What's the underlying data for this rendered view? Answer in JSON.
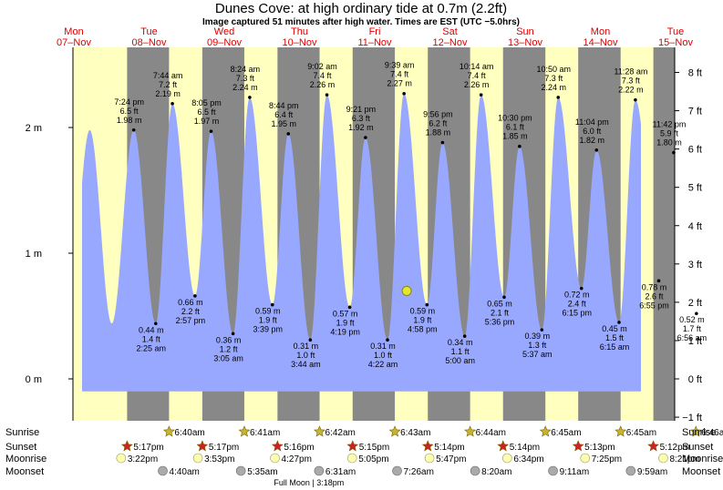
{
  "title": "Dunes Cove: at high  ordinary tide at 0.7m (2.2ft)",
  "subtitle": "Image captured 51 minutes after high water. Times are EST (UTC −5.0hrs)",
  "colors": {
    "day": "#ffffc0",
    "night": "#888888",
    "tide": "#99a8ff",
    "date_label": "#dd0000",
    "current_marker": "#e6e632",
    "sun_star": "#c8b432",
    "sunset_star": "#cc2222",
    "moonrise": "#fdfdb0",
    "moonset": "#aaaaaa"
  },
  "chart_data": {
    "type": "area",
    "title": "Dunes Cove: at high  ordinary tide at 0.7m (2.2ft)",
    "subtitle": "Image captured 51 minutes after high water. Times are EST (UTC −5.0hrs)",
    "x_start": "2022-11-07 00:00",
    "x_end": "2022-11-15 00:00",
    "ylim_m": [
      -0.27,
      2.55
    ],
    "left_axis": {
      "unit": "m",
      "ticks": [
        {
          "v": 0,
          "label": "0 m"
        },
        {
          "v": 1,
          "label": "1 m"
        },
        {
          "v": 2,
          "label": "2 m"
        }
      ]
    },
    "right_axis": {
      "unit": "ft",
      "ticks": [
        {
          "v": -1,
          "label": "−1 ft"
        },
        {
          "v": 0,
          "label": "0 ft"
        },
        {
          "v": 1,
          "label": "1 ft"
        },
        {
          "v": 2,
          "label": "2 ft"
        },
        {
          "v": 3,
          "label": "3 ft"
        },
        {
          "v": 4,
          "label": "4 ft"
        },
        {
          "v": 5,
          "label": "5 ft"
        },
        {
          "v": 6,
          "label": "6 ft"
        },
        {
          "v": 7,
          "label": "7 ft"
        },
        {
          "v": 8,
          "label": "8 ft"
        }
      ]
    },
    "days": [
      {
        "dow": "Mon",
        "date": "07–Nov",
        "sunrise": "",
        "sunset": "5:17pm",
        "moonrise": "3:22pm",
        "moonset": ""
      },
      {
        "dow": "Tue",
        "date": "08–Nov",
        "sunrise": "6:40am",
        "sunset": "5:17pm",
        "moonrise": "3:53pm",
        "moonset": "4:40am"
      },
      {
        "dow": "Wed",
        "date": "09–Nov",
        "sunrise": "6:41am",
        "sunset": "5:16pm",
        "moonrise": "4:27pm",
        "moonset": "5:35am"
      },
      {
        "dow": "Thu",
        "date": "10–Nov",
        "sunrise": "6:42am",
        "sunset": "5:15pm",
        "moonrise": "5:05pm",
        "moonset": "6:31am"
      },
      {
        "dow": "Fri",
        "date": "11–Nov",
        "sunrise": "6:43am",
        "sunset": "5:14pm",
        "moonrise": "5:47pm",
        "moonset": "7:26am"
      },
      {
        "dow": "Sat",
        "date": "12–Nov",
        "sunrise": "6:44am",
        "sunset": "5:14pm",
        "moonrise": "6:34pm",
        "moonset": "8:20am"
      },
      {
        "dow": "Sun",
        "date": "13–Nov",
        "sunrise": "6:45am",
        "sunset": "5:13pm",
        "moonrise": "7:25pm",
        "moonset": "9:11am"
      },
      {
        "dow": "Mon",
        "date": "14–Nov",
        "sunrise": "6:45am",
        "sunset": "5:12pm",
        "moonrise": "8:21pm",
        "moonset": "9:59am"
      },
      {
        "dow": "Tue",
        "date": "15–Nov",
        "sunrise": "6:46am",
        "sunset": "",
        "moonrise": "",
        "moonset": ""
      }
    ],
    "tides": [
      {
        "time": "2022-11-07 19:24",
        "m": 1.98,
        "type": "high",
        "label": [
          "7:24 pm",
          "6.5 ft",
          "1.98 m"
        ]
      },
      {
        "time": "2022-11-08 02:25",
        "m": 0.44,
        "type": "low",
        "label": [
          "0.44 m",
          "1.4 ft",
          "2:25 am"
        ]
      },
      {
        "time": "2022-11-08 07:44",
        "m": 2.19,
        "type": "high",
        "label": [
          "7:44 am",
          "7.2 ft",
          "2.19 m"
        ]
      },
      {
        "time": "2022-11-08 14:57",
        "m": 0.66,
        "type": "low",
        "label": [
          "0.66 m",
          "2.2 ft",
          "2:57 pm"
        ]
      },
      {
        "time": "2022-11-08 20:05",
        "m": 1.97,
        "type": "high",
        "label": [
          "8:05 pm",
          "6.5 ft",
          "1.97 m"
        ]
      },
      {
        "time": "2022-11-09 03:05",
        "m": 0.36,
        "type": "low",
        "label": [
          "0.36 m",
          "1.2 ft",
          "3:05 am"
        ]
      },
      {
        "time": "2022-11-09 08:24",
        "m": 2.24,
        "type": "high",
        "label": [
          "8:24 am",
          "7.3 ft",
          "2.24 m"
        ]
      },
      {
        "time": "2022-11-09 15:39",
        "m": 0.59,
        "type": "low",
        "label": [
          "0.59 m",
          "1.9 ft",
          "3:39 pm"
        ]
      },
      {
        "time": "2022-11-09 20:44",
        "m": 1.95,
        "type": "high",
        "label": [
          "8:44 pm",
          "6.4 ft",
          "1.95 m"
        ]
      },
      {
        "time": "2022-11-10 03:44",
        "m": 0.31,
        "type": "low",
        "label": [
          "0.31 m",
          "1.0 ft",
          "3:44 am"
        ]
      },
      {
        "time": "2022-11-10 09:02",
        "m": 2.26,
        "type": "high",
        "label": [
          "9:02 am",
          "7.4 ft",
          "2.26 m"
        ]
      },
      {
        "time": "2022-11-10 16:19",
        "m": 0.57,
        "type": "low",
        "label": [
          "0.57 m",
          "1.9 ft",
          "4:19 pm"
        ]
      },
      {
        "time": "2022-11-10 21:21",
        "m": 1.92,
        "type": "high",
        "label": [
          "9:21 pm",
          "6.3 ft",
          "1.92 m"
        ]
      },
      {
        "time": "2022-11-11 04:22",
        "m": 0.31,
        "type": "low",
        "label": [
          "0.31 m",
          "1.0 ft",
          "4:22 am"
        ]
      },
      {
        "time": "2022-11-11 09:39",
        "m": 2.27,
        "type": "high",
        "label": [
          "9:39 am",
          "7.4 ft",
          "2.27 m"
        ]
      },
      {
        "time": "2022-11-11 16:58",
        "m": 0.59,
        "type": "low",
        "label": [
          "0.59 m",
          "1.9 ft",
          "4:58 pm"
        ]
      },
      {
        "time": "2022-11-11 21:56",
        "m": 1.88,
        "type": "high",
        "label": [
          "9:56 pm",
          "6.2 ft",
          "1.88 m"
        ]
      },
      {
        "time": "2022-11-12 05:00",
        "m": 0.34,
        "type": "low",
        "label": [
          "0.34 m",
          "1.1 ft",
          "5:00 am"
        ]
      },
      {
        "time": "2022-11-12 10:14",
        "m": 2.26,
        "type": "high",
        "label": [
          "10:14 am",
          "7.4 ft",
          "2.26 m"
        ]
      },
      {
        "time": "2022-11-12 17:36",
        "m": 0.65,
        "type": "low",
        "label": [
          "0.65 m",
          "2.1 ft",
          "5:36 pm"
        ]
      },
      {
        "time": "2022-11-12 22:30",
        "m": 1.85,
        "type": "high",
        "label": [
          "10:30 pm",
          "6.1 ft",
          "1.85 m"
        ]
      },
      {
        "time": "2022-11-13 05:37",
        "m": 0.39,
        "type": "low",
        "label": [
          "0.39 m",
          "1.3 ft",
          "5:37 am"
        ]
      },
      {
        "time": "2022-11-13 10:50",
        "m": 2.24,
        "type": "high",
        "label": [
          "10:50 am",
          "7.3 ft",
          "2.24 m"
        ]
      },
      {
        "time": "2022-11-13 18:15",
        "m": 0.72,
        "type": "low",
        "label": [
          "0.72 m",
          "2.4 ft",
          "6:15 pm"
        ]
      },
      {
        "time": "2022-11-13 23:04",
        "m": 1.82,
        "type": "high",
        "label": [
          "11:04 pm",
          "6.0 ft",
          "1.82 m"
        ]
      },
      {
        "time": "2022-11-14 06:15",
        "m": 0.45,
        "type": "low",
        "label": [
          "0.45 m",
          "1.5 ft",
          "6:15 am"
        ]
      },
      {
        "time": "2022-11-14 11:28",
        "m": 2.22,
        "type": "high",
        "label": [
          "11:28 am",
          "7.3 ft",
          "2.22 m"
        ]
      },
      {
        "time": "2022-11-14 18:55",
        "m": 0.78,
        "type": "low",
        "label": [
          "0.78 m",
          "2.6 ft",
          "6:55 pm"
        ]
      },
      {
        "time": "2022-11-14 23:42",
        "m": 1.8,
        "type": "high",
        "label": [
          "11:42 pm",
          "5.9 ft",
          "1.80 m"
        ]
      },
      {
        "time": "2022-11-15 06:56",
        "m": 0.52,
        "type": "low",
        "label": [
          "0.52 m",
          "1.7 ft",
          "6:56 am"
        ]
      }
    ],
    "current": {
      "time": "2022-11-11 10:30",
      "m": 0.7
    },
    "full_moon_label": "Full Moon | 3:18pm",
    "full_moon_day": 3
  },
  "rows": {
    "sunrise": "Sunrise",
    "sunset": "Sunset",
    "moonrise": "Moonrise",
    "moonset": "Moonset"
  }
}
